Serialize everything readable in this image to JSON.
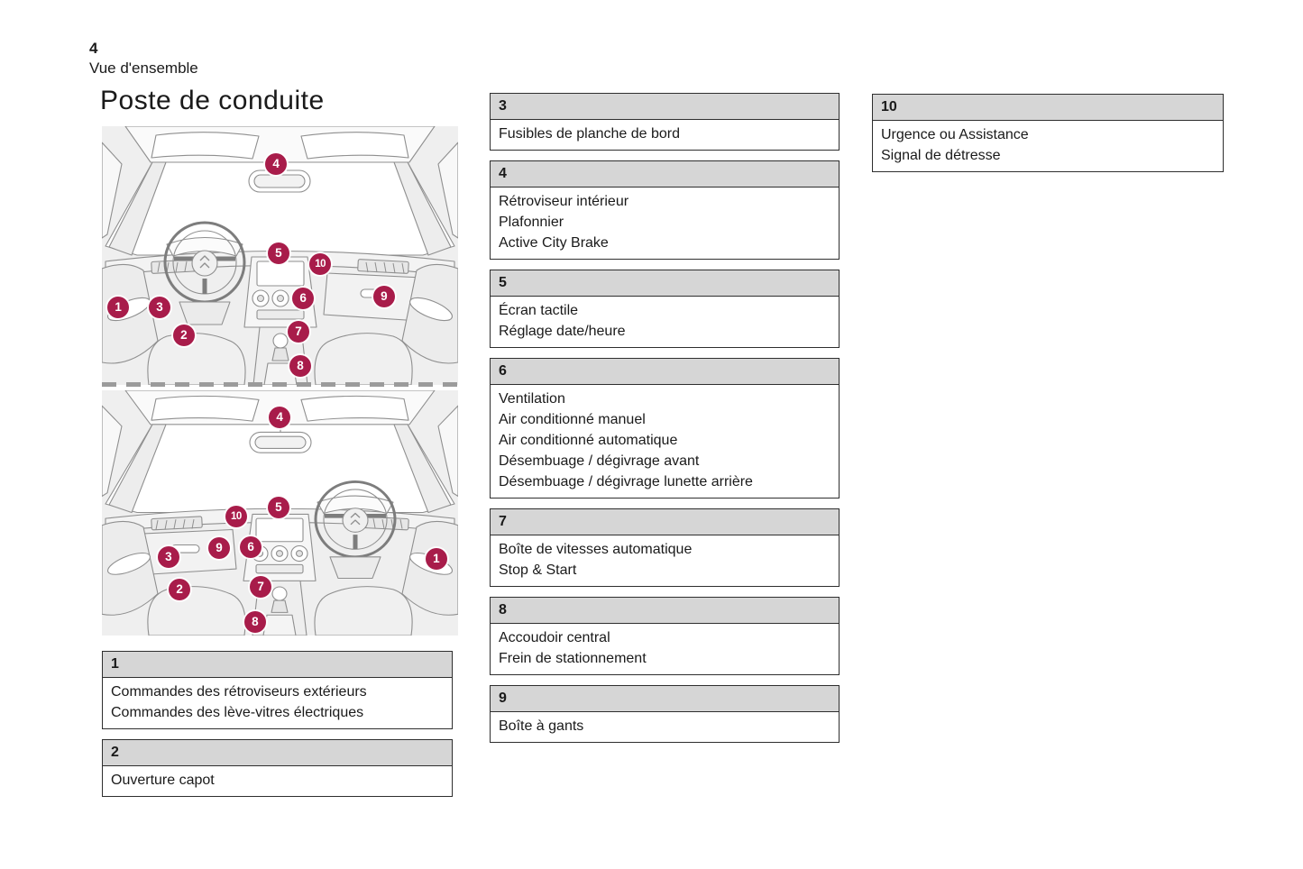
{
  "page": {
    "number": "4",
    "section": "Vue d'ensemble",
    "title": "Poste de conduite"
  },
  "colors": {
    "accent": "#a81c4a",
    "box_header_bg": "#d6d6d6",
    "box_border": "#2e2e2e",
    "illustration_bg": "#efefef"
  },
  "legend_boxes": [
    {
      "id": "1",
      "column": "left",
      "lines": [
        "Commandes des rétroviseurs extérieurs",
        "Commandes des lève-vitres électriques"
      ]
    },
    {
      "id": "2",
      "column": "left",
      "lines": [
        "Ouverture capot"
      ]
    },
    {
      "id": "3",
      "column": "middle",
      "lines": [
        "Fusibles de planche de bord"
      ]
    },
    {
      "id": "4",
      "column": "middle",
      "lines": [
        "Rétroviseur intérieur",
        "Plafonnier",
        "Active City Brake"
      ]
    },
    {
      "id": "5",
      "column": "middle",
      "lines": [
        "Écran tactile",
        "Réglage date/heure"
      ]
    },
    {
      "id": "6",
      "column": "middle",
      "lines": [
        "Ventilation",
        "Air conditionné manuel",
        "Air conditionné automatique",
        "Désembuage / dégivrage avant",
        "Désembuage / dégivrage lunette arrière"
      ]
    },
    {
      "id": "7",
      "column": "middle",
      "lines": [
        "Boîte de vitesses automatique",
        "Stop & Start"
      ]
    },
    {
      "id": "8",
      "column": "middle",
      "lines": [
        "Accoudoir central",
        "Frein de stationnement"
      ]
    },
    {
      "id": "9",
      "column": "middle",
      "lines": [
        "Boîte à gants"
      ]
    },
    {
      "id": "10",
      "column": "right",
      "lines": [
        "Urgence ou Assistance",
        "Signal de détresse"
      ]
    }
  ],
  "diagrams": [
    {
      "name": "dashboard-left-hand-drive",
      "markers": [
        {
          "n": "4",
          "x": 48.9,
          "y": 14.6
        },
        {
          "n": "5",
          "x": 49.6,
          "y": 49.1
        },
        {
          "n": "10",
          "x": 61.3,
          "y": 53.3
        },
        {
          "n": "6",
          "x": 56.5,
          "y": 66.6
        },
        {
          "n": "9",
          "x": 79.2,
          "y": 65.9
        },
        {
          "n": "1",
          "x": 4.6,
          "y": 70.0
        },
        {
          "n": "3",
          "x": 16.2,
          "y": 70.0
        },
        {
          "n": "2",
          "x": 23.0,
          "y": 80.8
        },
        {
          "n": "7",
          "x": 55.2,
          "y": 79.4
        },
        {
          "n": "8",
          "x": 55.7,
          "y": 92.7
        }
      ]
    },
    {
      "name": "dashboard-right-hand-drive",
      "markers": [
        {
          "n": "4",
          "x": 49.9,
          "y": 11.0
        },
        {
          "n": "5",
          "x": 49.6,
          "y": 47.8
        },
        {
          "n": "10",
          "x": 37.7,
          "y": 51.5
        },
        {
          "n": "9",
          "x": 32.9,
          "y": 64.3
        },
        {
          "n": "6",
          "x": 41.8,
          "y": 64.0
        },
        {
          "n": "3",
          "x": 18.7,
          "y": 68.0
        },
        {
          "n": "1",
          "x": 93.9,
          "y": 68.8
        },
        {
          "n": "2",
          "x": 21.8,
          "y": 81.3
        },
        {
          "n": "7",
          "x": 44.6,
          "y": 80.1
        },
        {
          "n": "8",
          "x": 43.0,
          "y": 94.5
        }
      ]
    }
  ]
}
